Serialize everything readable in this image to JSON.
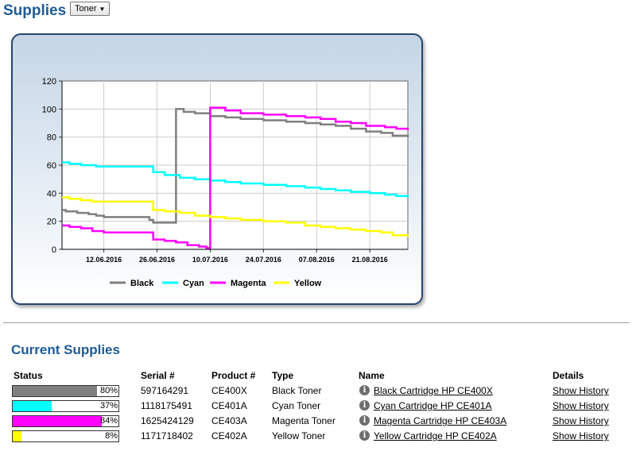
{
  "header": {
    "title": "Supplies",
    "select_value": "Toner"
  },
  "chart_data": {
    "type": "line",
    "x_ticks": [
      "12.06.2016",
      "26.06.2016",
      "10.07.2016",
      "24.07.2016",
      "07.08.2016",
      "21.08.2016"
    ],
    "x_range": [
      "2016-06-01",
      "2016-08-31"
    ],
    "ylim": [
      0,
      120
    ],
    "y_ticks": [
      0,
      20,
      40,
      60,
      80,
      100,
      120
    ],
    "grid": true,
    "legend_position": "bottom",
    "series": [
      {
        "name": "Black",
        "color": "#7f7f7f",
        "points": [
          [
            "2016-06-01",
            28
          ],
          [
            "2016-06-02",
            27
          ],
          [
            "2016-06-05",
            26
          ],
          [
            "2016-06-08",
            25
          ],
          [
            "2016-06-10",
            24
          ],
          [
            "2016-06-12",
            23
          ],
          [
            "2016-06-23",
            23
          ],
          [
            "2016-06-24",
            21
          ],
          [
            "2016-06-25",
            19
          ],
          [
            "2016-06-30",
            19
          ],
          [
            "2016-07-01",
            100
          ],
          [
            "2016-07-03",
            98
          ],
          [
            "2016-07-06",
            97
          ],
          [
            "2016-07-10",
            95
          ],
          [
            "2016-07-14",
            94
          ],
          [
            "2016-07-18",
            93
          ],
          [
            "2016-07-24",
            92
          ],
          [
            "2016-07-30",
            91
          ],
          [
            "2016-08-04",
            90
          ],
          [
            "2016-08-08",
            89
          ],
          [
            "2016-08-12",
            88
          ],
          [
            "2016-08-16",
            86
          ],
          [
            "2016-08-20",
            84
          ],
          [
            "2016-08-24",
            83
          ],
          [
            "2016-08-27",
            81
          ],
          [
            "2016-08-31",
            80
          ]
        ]
      },
      {
        "name": "Cyan",
        "color": "#00ffff",
        "points": [
          [
            "2016-06-01",
            62
          ],
          [
            "2016-06-03",
            61
          ],
          [
            "2016-06-06",
            60
          ],
          [
            "2016-06-10",
            59
          ],
          [
            "2016-06-24",
            59
          ],
          [
            "2016-06-25",
            55
          ],
          [
            "2016-06-28",
            53
          ],
          [
            "2016-07-02",
            51
          ],
          [
            "2016-07-06",
            50
          ],
          [
            "2016-07-10",
            49
          ],
          [
            "2016-07-14",
            48
          ],
          [
            "2016-07-18",
            47
          ],
          [
            "2016-07-24",
            46
          ],
          [
            "2016-07-30",
            45
          ],
          [
            "2016-08-04",
            44
          ],
          [
            "2016-08-08",
            43
          ],
          [
            "2016-08-12",
            42
          ],
          [
            "2016-08-16",
            41
          ],
          [
            "2016-08-21",
            40
          ],
          [
            "2016-08-25",
            39
          ],
          [
            "2016-08-28",
            38
          ],
          [
            "2016-08-31",
            37
          ]
        ]
      },
      {
        "name": "Magenta",
        "color": "#ff00ff",
        "points": [
          [
            "2016-06-01",
            17
          ],
          [
            "2016-06-03",
            16
          ],
          [
            "2016-06-06",
            15
          ],
          [
            "2016-06-09",
            13
          ],
          [
            "2016-06-12",
            12
          ],
          [
            "2016-06-24",
            12
          ],
          [
            "2016-06-25",
            7
          ],
          [
            "2016-06-28",
            6
          ],
          [
            "2016-07-01",
            5
          ],
          [
            "2016-07-04",
            3
          ],
          [
            "2016-07-07",
            2
          ],
          [
            "2016-07-09",
            1
          ],
          [
            "2016-07-10",
            101
          ],
          [
            "2016-07-14",
            99
          ],
          [
            "2016-07-18",
            97
          ],
          [
            "2016-07-24",
            96
          ],
          [
            "2016-07-30",
            95
          ],
          [
            "2016-08-04",
            94
          ],
          [
            "2016-08-08",
            93
          ],
          [
            "2016-08-12",
            91
          ],
          [
            "2016-08-16",
            90
          ],
          [
            "2016-08-20",
            88
          ],
          [
            "2016-08-25",
            87
          ],
          [
            "2016-08-28",
            86
          ],
          [
            "2016-08-31",
            85
          ]
        ]
      },
      {
        "name": "Yellow",
        "color": "#ffff00",
        "points": [
          [
            "2016-06-01",
            37
          ],
          [
            "2016-06-03",
            36
          ],
          [
            "2016-06-06",
            35
          ],
          [
            "2016-06-09",
            34
          ],
          [
            "2016-06-24",
            34
          ],
          [
            "2016-06-25",
            28
          ],
          [
            "2016-06-28",
            27
          ],
          [
            "2016-07-02",
            26
          ],
          [
            "2016-07-06",
            24
          ],
          [
            "2016-07-10",
            23
          ],
          [
            "2016-07-14",
            22
          ],
          [
            "2016-07-18",
            21
          ],
          [
            "2016-07-24",
            20
          ],
          [
            "2016-07-30",
            19
          ],
          [
            "2016-08-04",
            17
          ],
          [
            "2016-08-08",
            16
          ],
          [
            "2016-08-12",
            15
          ],
          [
            "2016-08-16",
            14
          ],
          [
            "2016-08-20",
            13
          ],
          [
            "2016-08-24",
            12
          ],
          [
            "2016-08-27",
            10
          ],
          [
            "2016-08-31",
            9
          ]
        ]
      }
    ]
  },
  "supplies": {
    "title": "Current Supplies",
    "headers": {
      "status": "Status",
      "serial": "Serial #",
      "product": "Product #",
      "type": "Type",
      "name": "Name",
      "details": "Details"
    },
    "rows": [
      {
        "percent": 80,
        "percent_label": "80%",
        "color": "#808080",
        "serial": "597164291",
        "product": "CE400X",
        "type": "Black Toner",
        "name": "Black Cartridge HP CE400X",
        "details": "Show History",
        "info_icon": "info-circle-icon"
      },
      {
        "percent": 37,
        "percent_label": "37%",
        "color": "#00ffff",
        "serial": "1118175491",
        "product": "CE401A",
        "type": "Cyan Toner",
        "name": "Cyan Cartridge HP CE401A",
        "details": "Show History",
        "info_icon": "info-circle-icon"
      },
      {
        "percent": 84,
        "percent_label": "84%",
        "color": "#ff00ff",
        "serial": "1625424129",
        "product": "CE403A",
        "type": "Magenta Toner",
        "name": "Magenta Cartridge HP CE403A",
        "details": "Show History",
        "info_icon": "info-circle-icon"
      },
      {
        "percent": 8,
        "percent_label": "8%",
        "color": "#ffff00",
        "serial": "1171718402",
        "product": "CE402A",
        "type": "Yellow Toner",
        "name": "Yellow Cartridge HP CE402A",
        "details": "Show History",
        "info_icon": "info-circle-icon"
      }
    ]
  }
}
